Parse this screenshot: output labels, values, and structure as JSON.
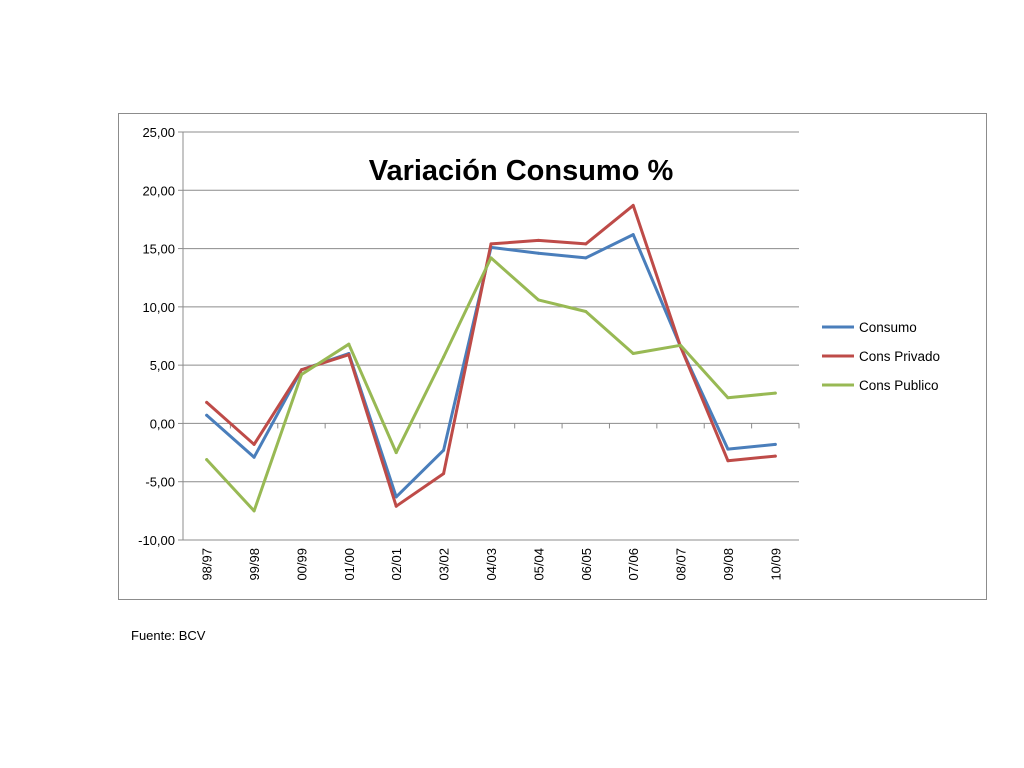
{
  "chart_data": {
    "type": "line",
    "title": "Variación Consumo %",
    "xlabel": "",
    "ylabel": "",
    "ylim": [
      -10,
      25
    ],
    "y_ticks": [
      25,
      20,
      15,
      10,
      5,
      0,
      -5,
      -10
    ],
    "y_tick_labels": [
      "25,00",
      "20,00",
      "15,00",
      "10,00",
      "5,00",
      "0,00",
      "-5,00",
      "-10,00"
    ],
    "categories": [
      "98/97",
      "99/98",
      "00/99",
      "01/00",
      "02/01",
      "03/02",
      "04/03",
      "05/04",
      "06/05",
      "07/06",
      "08/07",
      "09/08",
      "10/09"
    ],
    "grid": "horizontal",
    "legend_position": "right",
    "series": [
      {
        "name": "Consumo",
        "color": "#4a7ebb",
        "values": [
          0.7,
          -2.9,
          4.6,
          6.0,
          -6.3,
          -2.3,
          15.1,
          14.6,
          14.2,
          16.2,
          6.6,
          -2.2,
          -1.8
        ]
      },
      {
        "name": "Cons Privado",
        "color": "#be4b48",
        "values": [
          1.8,
          -1.8,
          4.6,
          5.9,
          -7.1,
          -4.3,
          15.4,
          15.7,
          15.4,
          18.7,
          6.6,
          -3.2,
          -2.8
        ]
      },
      {
        "name": "Cons Publico",
        "color": "#98b954",
        "values": [
          -3.1,
          -7.5,
          4.2,
          6.8,
          -2.5,
          5.7,
          14.2,
          10.6,
          9.6,
          6.0,
          6.7,
          2.2,
          2.6
        ]
      }
    ]
  },
  "source": "Fuente: BCV"
}
